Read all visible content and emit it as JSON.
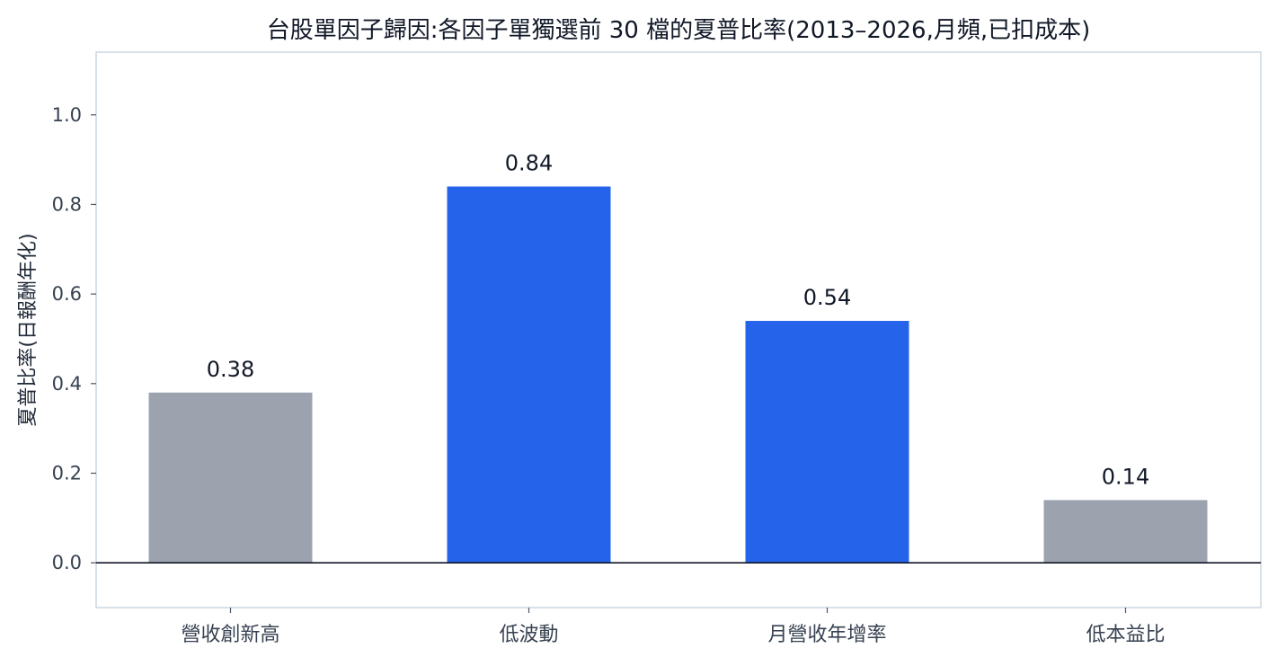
{
  "chart_data": {
    "type": "bar",
    "title": "台股單因子歸因:各因子單獨選前 30 檔的夏普比率(2013–2026,月頻,已扣成本)",
    "xlabel": "",
    "ylabel": "夏普比率(日報酬年化)",
    "categories": [
      "營收創新高",
      "低波動",
      "月營收年增率",
      "低本益比"
    ],
    "values": [
      0.38,
      0.84,
      0.54,
      0.14
    ],
    "value_labels": [
      "0.38",
      "0.84",
      "0.54",
      "0.14"
    ],
    "bar_colors": [
      "#9ca3af",
      "#2563eb",
      "#2563eb",
      "#9ca3af"
    ],
    "ylim": [
      -0.1,
      1.14
    ],
    "yticks": [
      0.0,
      0.2,
      0.4,
      0.6,
      0.8,
      1.0
    ],
    "ytick_labels": [
      "0.0",
      "0.2",
      "0.4",
      "0.6",
      "0.8",
      "1.0"
    ],
    "grid": false,
    "legend": "none",
    "zero_line_color": "#111827",
    "frame_color": "#cbd5e1"
  }
}
